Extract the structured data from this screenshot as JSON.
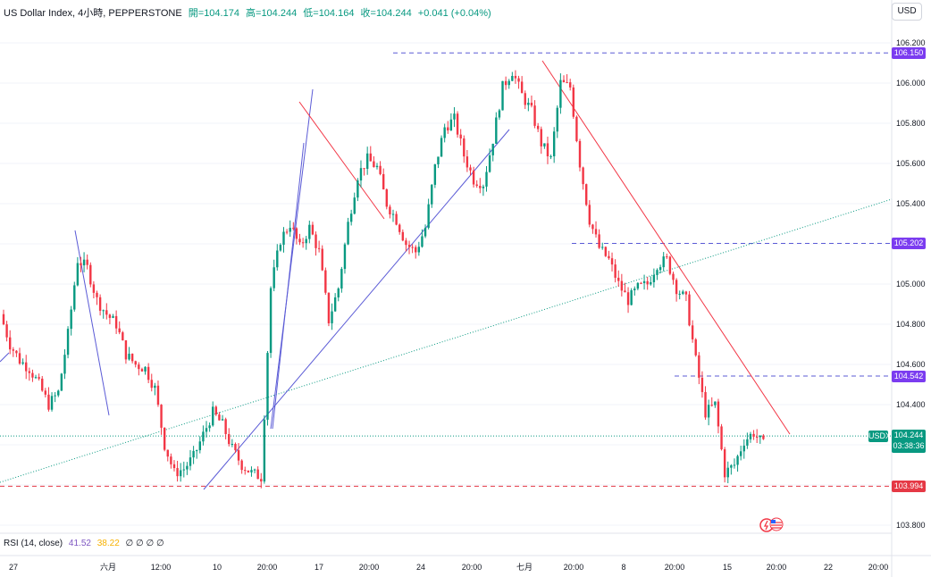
{
  "header": {
    "symbol": "US Dollar Index, 4小時, PEPPERSTONE",
    "open": "開=104.174",
    "high": "高=104.244",
    "low": "低=104.164",
    "close": "收=104.244",
    "change": "+0.041 (+0.04%)"
  },
  "currency_button": "USD",
  "rsi": {
    "label": "RSI (14, close)",
    "value": "41.52",
    "ma": "38.22",
    "extra": "∅ ∅ ∅ ∅"
  },
  "colors": {
    "up": "#089981",
    "down": "#f23645",
    "trend_blue": "#5b5bd6",
    "trend_red": "#f23645",
    "green_dotted": "#089981",
    "level_tag": "#7b3cf0",
    "support_red": "#e53945"
  },
  "price_tags": {
    "level_top": "106.150",
    "level_mid": "105.202",
    "level_low": "104.542",
    "support": "103.994",
    "current_symbol": "USDX",
    "current_price": "104.244",
    "countdown": "03:38:36"
  },
  "chart_data": {
    "type": "candlestick",
    "y_axis_ticks": [
      "106.200",
      "106.000",
      "105.800",
      "105.600",
      "105.400",
      "105.200",
      "105.000",
      "104.800",
      "104.600",
      "104.400",
      "104.200",
      "104.000",
      "103.800"
    ],
    "ylim": [
      103.75,
      106.25
    ],
    "x_axis_labels": [
      "27",
      "六月",
      "12:00",
      "10",
      "20:00",
      "17",
      "20:00",
      "24",
      "20:00",
      "七月",
      "20:00",
      "8",
      "20:00",
      "15",
      "20:00",
      "22",
      "20:00"
    ],
    "close_path": [
      104.85,
      104.7,
      104.62,
      104.58,
      104.5,
      104.4,
      104.46,
      104.75,
      105.12,
      105.08,
      104.92,
      104.85,
      104.8,
      104.65,
      104.6,
      104.58,
      104.48,
      104.2,
      104.06,
      104.08,
      104.14,
      104.25,
      104.36,
      104.3,
      104.18,
      104.1,
      104.06,
      104.04,
      104.98,
      105.22,
      105.3,
      105.18,
      105.28,
      105.16,
      104.82,
      104.98,
      105.3,
      105.54,
      105.62,
      105.58,
      105.4,
      105.32,
      105.2,
      105.16,
      105.28,
      105.58,
      105.78,
      105.82,
      105.64,
      105.52,
      105.5,
      105.72,
      105.98,
      106.06,
      105.94,
      105.86,
      105.7,
      105.62,
      106.0,
      105.98,
      105.6,
      105.32,
      105.18,
      105.12,
      105.0,
      104.92,
      104.98,
      105.0,
      105.1,
      105.12,
      104.98,
      104.92,
      104.62,
      104.36,
      104.4,
      104.06,
      104.1,
      104.22,
      104.26,
      104.2
    ],
    "levels": [
      {
        "value": 106.15,
        "style": "dashed"
      },
      {
        "value": 105.202,
        "style": "dashed"
      },
      {
        "value": 104.542,
        "style": "dashed"
      },
      {
        "value": 103.994,
        "style": "dashed"
      },
      {
        "value": 104.244,
        "style": "dotted"
      }
    ]
  }
}
